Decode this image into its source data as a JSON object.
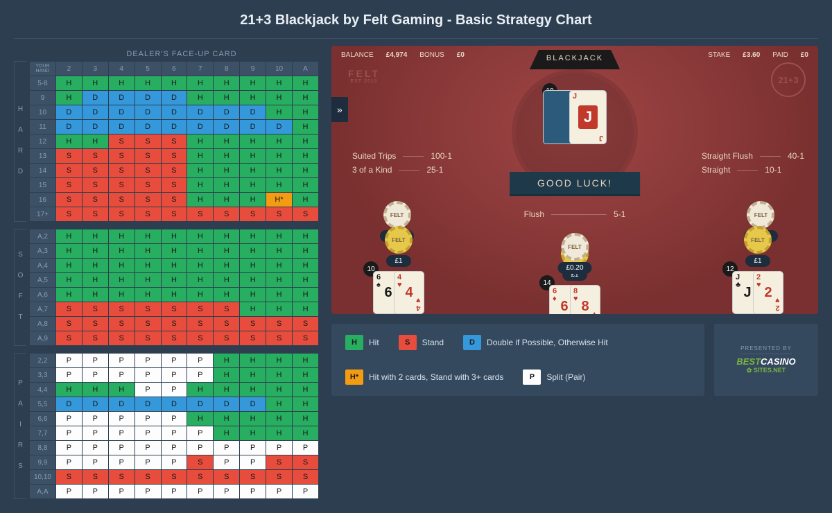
{
  "title": "21+3 Blackjack by Felt Gaming - Basic Strategy Chart",
  "chart_header": "DEALER'S FACE-UP CARD",
  "dealer_cols": [
    "2",
    "3",
    "4",
    "5",
    "6",
    "7",
    "8",
    "9",
    "10",
    "A"
  ],
  "row_header_label": "YOUR HAND",
  "sections": {
    "hard": {
      "label": "H A R D",
      "rows": [
        {
          "label": "5-8",
          "cells": [
            "H",
            "H",
            "H",
            "H",
            "H",
            "H",
            "H",
            "H",
            "H",
            "H"
          ]
        },
        {
          "label": "9",
          "cells": [
            "H",
            "D",
            "D",
            "D",
            "D",
            "H",
            "H",
            "H",
            "H",
            "H"
          ]
        },
        {
          "label": "10",
          "cells": [
            "D",
            "D",
            "D",
            "D",
            "D",
            "D",
            "D",
            "D",
            "H",
            "H"
          ]
        },
        {
          "label": "11",
          "cells": [
            "D",
            "D",
            "D",
            "D",
            "D",
            "D",
            "D",
            "D",
            "D",
            "H"
          ]
        },
        {
          "label": "12",
          "cells": [
            "H",
            "H",
            "S",
            "S",
            "S",
            "H",
            "H",
            "H",
            "H",
            "H"
          ]
        },
        {
          "label": "13",
          "cells": [
            "S",
            "S",
            "S",
            "S",
            "S",
            "H",
            "H",
            "H",
            "H",
            "H"
          ]
        },
        {
          "label": "14",
          "cells": [
            "S",
            "S",
            "S",
            "S",
            "S",
            "H",
            "H",
            "H",
            "H",
            "H"
          ]
        },
        {
          "label": "15",
          "cells": [
            "S",
            "S",
            "S",
            "S",
            "S",
            "H",
            "H",
            "H",
            "H",
            "H"
          ]
        },
        {
          "label": "16",
          "cells": [
            "S",
            "S",
            "S",
            "S",
            "S",
            "H",
            "H",
            "H",
            "H*",
            "H"
          ]
        },
        {
          "label": "17+",
          "cells": [
            "S",
            "S",
            "S",
            "S",
            "S",
            "S",
            "S",
            "S",
            "S",
            "S"
          ]
        }
      ]
    },
    "soft": {
      "label": "S O F T",
      "rows": [
        {
          "label": "A,2",
          "cells": [
            "H",
            "H",
            "H",
            "H",
            "H",
            "H",
            "H",
            "H",
            "H",
            "H"
          ]
        },
        {
          "label": "A,3",
          "cells": [
            "H",
            "H",
            "H",
            "H",
            "H",
            "H",
            "H",
            "H",
            "H",
            "H"
          ]
        },
        {
          "label": "A,4",
          "cells": [
            "H",
            "H",
            "H",
            "H",
            "H",
            "H",
            "H",
            "H",
            "H",
            "H"
          ]
        },
        {
          "label": "A,5",
          "cells": [
            "H",
            "H",
            "H",
            "H",
            "H",
            "H",
            "H",
            "H",
            "H",
            "H"
          ]
        },
        {
          "label": "A,6",
          "cells": [
            "H",
            "H",
            "H",
            "H",
            "H",
            "H",
            "H",
            "H",
            "H",
            "H"
          ]
        },
        {
          "label": "A,7",
          "cells": [
            "S",
            "S",
            "S",
            "S",
            "S",
            "S",
            "S",
            "H",
            "H",
            "H"
          ]
        },
        {
          "label": "A,8",
          "cells": [
            "S",
            "S",
            "S",
            "S",
            "S",
            "S",
            "S",
            "S",
            "S",
            "S"
          ]
        },
        {
          "label": "A,9",
          "cells": [
            "S",
            "S",
            "S",
            "S",
            "S",
            "S",
            "S",
            "S",
            "S",
            "S"
          ]
        }
      ]
    },
    "pairs": {
      "label": "P A I R S",
      "rows": [
        {
          "label": "2,2",
          "cells": [
            "P",
            "P",
            "P",
            "P",
            "P",
            "P",
            "H",
            "H",
            "H",
            "H"
          ]
        },
        {
          "label": "3,3",
          "cells": [
            "P",
            "P",
            "P",
            "P",
            "P",
            "P",
            "H",
            "H",
            "H",
            "H"
          ]
        },
        {
          "label": "4,4",
          "cells": [
            "H",
            "H",
            "H",
            "P",
            "P",
            "H",
            "H",
            "H",
            "H",
            "H"
          ]
        },
        {
          "label": "5,5",
          "cells": [
            "D",
            "D",
            "D",
            "D",
            "D",
            "D",
            "D",
            "D",
            "H",
            "H"
          ]
        },
        {
          "label": "6,6",
          "cells": [
            "P",
            "P",
            "P",
            "P",
            "P",
            "H",
            "H",
            "H",
            "H",
            "H"
          ]
        },
        {
          "label": "7,7",
          "cells": [
            "P",
            "P",
            "P",
            "P",
            "P",
            "P",
            "H",
            "H",
            "H",
            "H"
          ]
        },
        {
          "label": "8,8",
          "cells": [
            "P",
            "P",
            "P",
            "P",
            "P",
            "P",
            "P",
            "P",
            "P",
            "P"
          ]
        },
        {
          "label": "9,9",
          "cells": [
            "P",
            "P",
            "P",
            "P",
            "P",
            "S",
            "P",
            "P",
            "S",
            "S"
          ]
        },
        {
          "label": "10,10",
          "cells": [
            "S",
            "S",
            "S",
            "S",
            "S",
            "S",
            "S",
            "S",
            "S",
            "S"
          ]
        },
        {
          "label": "A,A",
          "cells": [
            "P",
            "P",
            "P",
            "P",
            "P",
            "P",
            "P",
            "P",
            "P",
            "P"
          ]
        }
      ]
    }
  },
  "legend": {
    "H": "Hit",
    "S": "Stand",
    "D": "Double if Possible, Otherwise Hit",
    "Hs": "Hit with 2 cards, Stand with 3+ cards",
    "Hs_badge": "H*",
    "P": "Split (Pair)"
  },
  "game": {
    "balance_label": "BALANCE",
    "balance": "£4,974",
    "bonus_label": "BONUS",
    "bonus": "£0",
    "stake_label": "STAKE",
    "stake": "£3.60",
    "paid_label": "PAID",
    "paid": "£0",
    "banner": "BLACKJACK",
    "felt": "FELT",
    "felt_sub": "EST 2013",
    "badge": "21+3",
    "goodluck": "GOOD LUCK!",
    "dealer_count": "10",
    "paytable_left": [
      {
        "name": "Suited Trips",
        "odds": "100-1"
      },
      {
        "name": "3 of a Kind",
        "odds": "25-1"
      }
    ],
    "paytable_right": [
      {
        "name": "Straight Flush",
        "odds": "40-1"
      },
      {
        "name": "Straight",
        "odds": "10-1"
      }
    ],
    "flush": {
      "name": "Flush",
      "odds": "5-1"
    },
    "bonus_chip": "£0.20",
    "main_chip": "£1",
    "chip_brand": "FELT",
    "spots": [
      {
        "count": "10",
        "cards": [
          {
            "rank": "6",
            "suit": "♠",
            "color": "black"
          },
          {
            "rank": "4",
            "suit": "♥",
            "color": "red"
          }
        ]
      },
      {
        "count": "14",
        "cards": [
          {
            "rank": "6",
            "suit": "♦",
            "color": "red"
          },
          {
            "rank": "8",
            "suit": "♥",
            "color": "red"
          }
        ]
      },
      {
        "count": "12",
        "cards": [
          {
            "rank": "J",
            "suit": "♣",
            "color": "black"
          },
          {
            "rank": "2",
            "suit": "♥",
            "color": "red"
          }
        ]
      }
    ],
    "dealer_card": {
      "rank": "J",
      "suit": "♥",
      "color": "red"
    }
  },
  "branding": {
    "presented": "PRESENTED BY",
    "name1": "BEST",
    "name2": "CASINO",
    "suffix": "SITES.NET"
  }
}
